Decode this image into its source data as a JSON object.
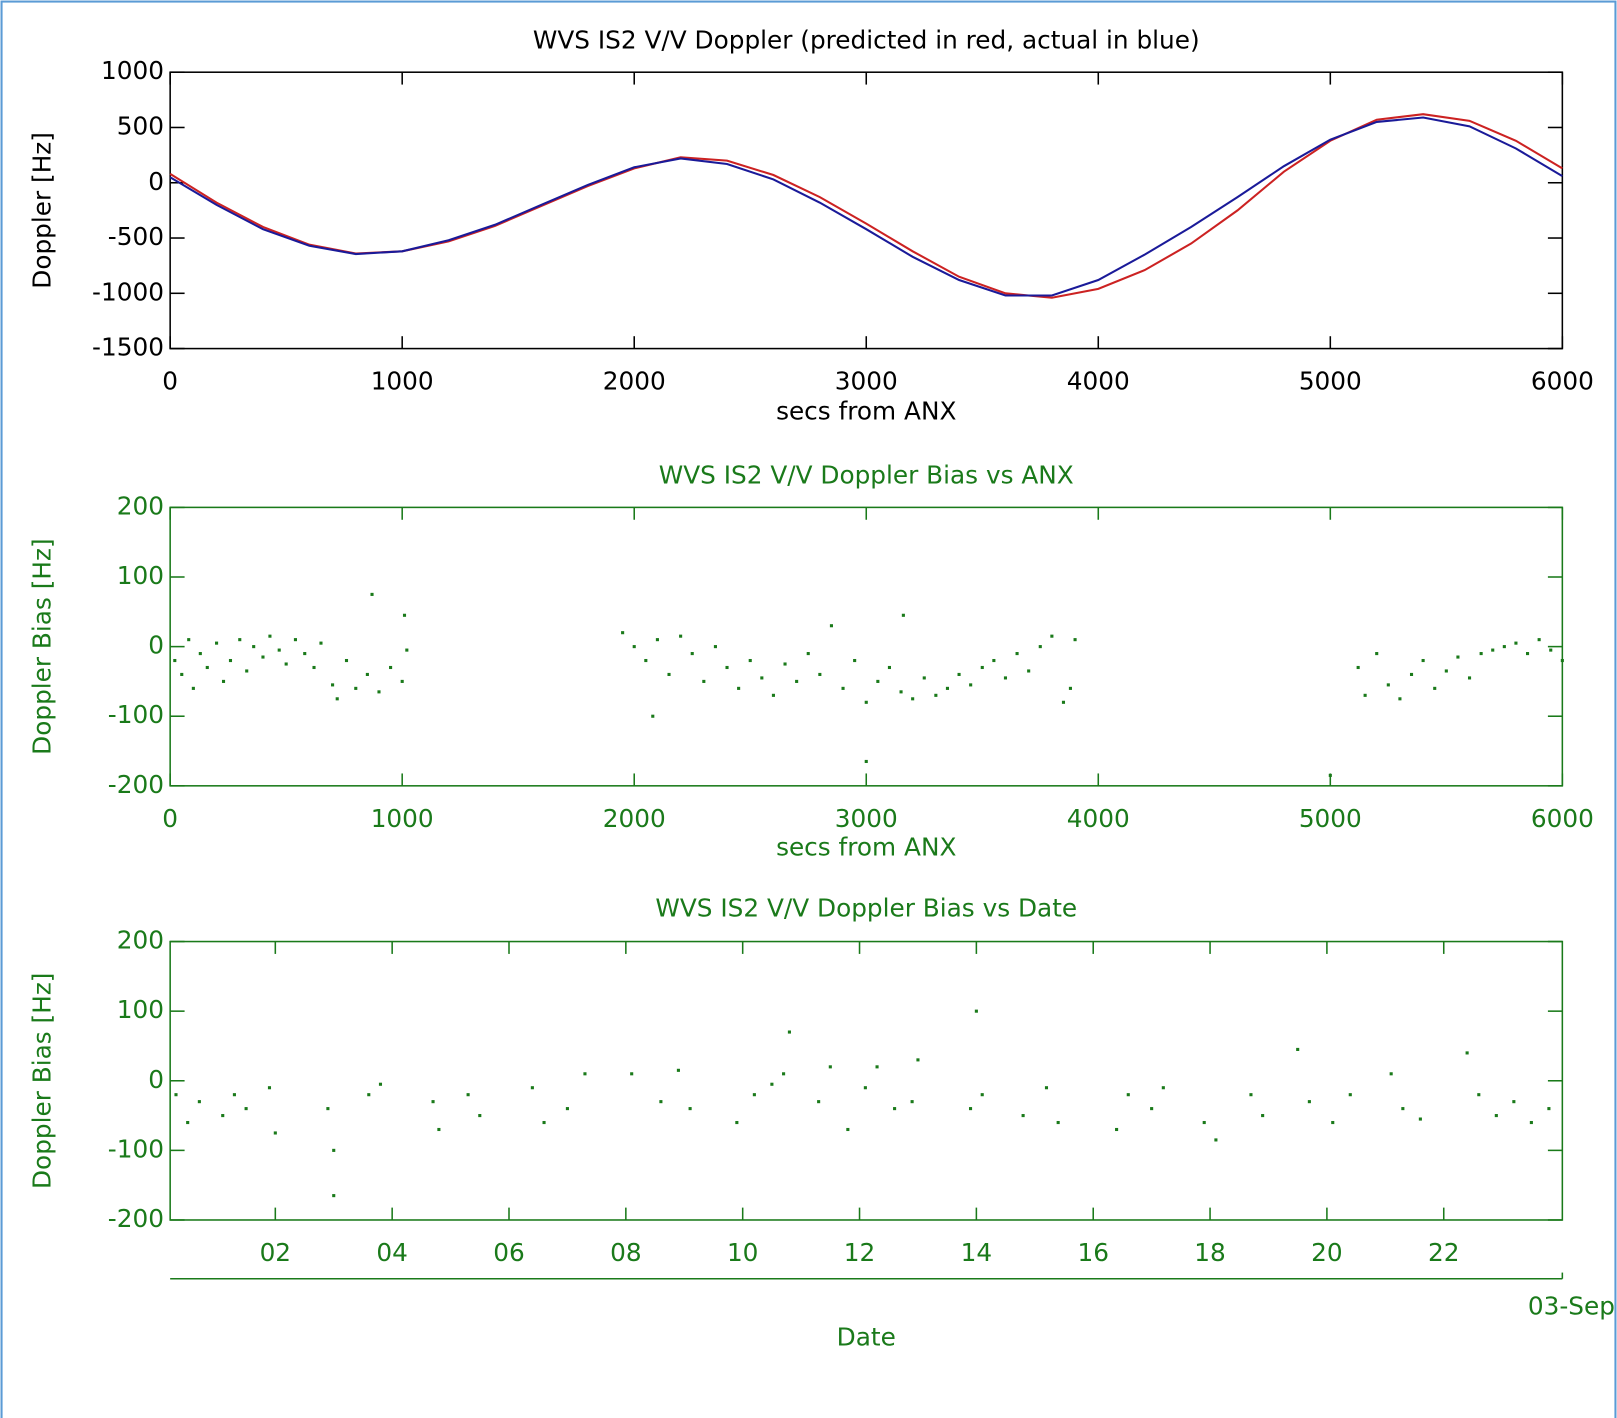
{
  "chart_data": [
    {
      "type": "line",
      "title": "WVS IS2 V/V Doppler (predicted in red, actual in blue)",
      "xlabel": "secs from ANX",
      "ylabel": "Doppler [Hz]",
      "text_color": "#000000",
      "x": [
        0,
        200,
        400,
        600,
        800,
        1000,
        1200,
        1400,
        1600,
        1800,
        2000,
        2200,
        2400,
        2600,
        2800,
        3000,
        3200,
        3400,
        3600,
        3800,
        4000,
        4200,
        4400,
        4600,
        4800,
        5000,
        5200,
        5400,
        5600,
        5800,
        6000
      ],
      "series": [
        {
          "color": "#cc2222",
          "values": [
            80,
            -180,
            -400,
            -560,
            -640,
            -620,
            -530,
            -390,
            -210,
            -30,
            130,
            230,
            200,
            70,
            -130,
            -370,
            -620,
            -850,
            -1000,
            -1040,
            -960,
            -790,
            -550,
            -250,
            100,
            380,
            570,
            620,
            560,
            380,
            130
          ]
        },
        {
          "color": "#1a1a99",
          "values": [
            50,
            -200,
            -420,
            -570,
            -645,
            -620,
            -520,
            -380,
            -200,
            -20,
            140,
            220,
            170,
            30,
            -180,
            -420,
            -670,
            -880,
            -1020,
            -1020,
            -880,
            -650,
            -400,
            -130,
            150,
            390,
            550,
            590,
            510,
            310,
            60
          ]
        }
      ],
      "xlim": [
        0,
        6000
      ],
      "ylim": [
        -1500,
        1000
      ],
      "xticks": [
        0,
        1000,
        2000,
        3000,
        4000,
        5000,
        6000
      ],
      "yticks": [
        -1500,
        -1000,
        -500,
        0,
        500,
        1000
      ]
    },
    {
      "type": "scatter",
      "title": "WVS IS2 V/V Doppler Bias vs ANX",
      "xlabel": "secs from ANX",
      "ylabel": "Doppler Bias [Hz]",
      "text_color": "#1a7a1a",
      "color": "#1a7a1a",
      "x": [
        20,
        50,
        80,
        100,
        130,
        160,
        200,
        230,
        260,
        300,
        330,
        360,
        400,
        430,
        470,
        500,
        540,
        580,
        620,
        650,
        700,
        720,
        760,
        800,
        850,
        870,
        900,
        950,
        1000,
        1020,
        1010,
        1950,
        2000,
        2050,
        2080,
        2100,
        2150,
        2200,
        2250,
        2300,
        2350,
        2400,
        2450,
        2500,
        2550,
        2600,
        2650,
        2700,
        2750,
        2800,
        2850,
        2900,
        2950,
        3000,
        3050,
        3100,
        3150,
        3200,
        3250,
        3300,
        3350,
        3400,
        3450,
        3500,
        3550,
        3600,
        3650,
        3700,
        3750,
        3800,
        3850,
        3880,
        3900,
        3160,
        3000,
        5120,
        5150,
        5200,
        5250,
        5300,
        5350,
        5400,
        5450,
        5500,
        5550,
        5600,
        5650,
        5700,
        5750,
        5800,
        5850,
        5900,
        5950,
        6000,
        5000
      ],
      "values": [
        -20,
        -40,
        10,
        -60,
        -10,
        -30,
        5,
        -50,
        -20,
        10,
        -35,
        0,
        -15,
        15,
        -5,
        -25,
        10,
        -10,
        -30,
        5,
        -55,
        -75,
        -20,
        -60,
        -40,
        75,
        -65,
        -30,
        -50,
        -5,
        45,
        20,
        0,
        -20,
        -100,
        10,
        -40,
        15,
        -10,
        -50,
        0,
        -30,
        -60,
        -20,
        -45,
        -70,
        -25,
        -50,
        -10,
        -40,
        30,
        -60,
        -20,
        -80,
        -50,
        -30,
        -65,
        -75,
        -45,
        -70,
        -60,
        -40,
        -55,
        -30,
        -20,
        -45,
        -10,
        -35,
        0,
        15,
        -80,
        -60,
        10,
        45,
        -165,
        -30,
        -70,
        -10,
        -55,
        -75,
        -40,
        -20,
        -60,
        -35,
        -15,
        -45,
        -10,
        -5,
        0,
        5,
        -10,
        10,
        -5,
        -20,
        -185
      ],
      "xlim": [
        0,
        6000
      ],
      "ylim": [
        -200,
        200
      ],
      "xticks": [
        0,
        1000,
        2000,
        3000,
        4000,
        5000,
        6000
      ],
      "yticks": [
        -200,
        -100,
        0,
        100,
        200
      ]
    },
    {
      "type": "scatter",
      "title": "WVS IS2 V/V Doppler Bias vs Date",
      "xlabel": "Date",
      "ylabel": "Doppler Bias [Hz]",
      "annotation": "03-Sep",
      "text_color": "#1a7a1a",
      "color": "#1a7a1a",
      "x": [
        0.3,
        0.5,
        0.7,
        1.1,
        1.3,
        1.5,
        1.9,
        2.0,
        2.9,
        3.0,
        3.0,
        3.6,
        3.8,
        4.7,
        4.8,
        5.3,
        5.5,
        6.4,
        6.6,
        7.0,
        7.3,
        8.1,
        8.6,
        8.9,
        9.1,
        9.9,
        10.2,
        10.5,
        10.7,
        10.8,
        11.3,
        11.5,
        11.8,
        12.1,
        12.3,
        12.6,
        12.9,
        13.0,
        13.9,
        14.0,
        14.1,
        14.8,
        15.2,
        15.4,
        16.4,
        16.6,
        17.0,
        17.2,
        17.9,
        18.1,
        18.7,
        18.9,
        19.5,
        19.7,
        20.1,
        20.4,
        21.1,
        21.3,
        21.6,
        22.4,
        22.6,
        22.9,
        23.2,
        23.5,
        23.8
      ],
      "values": [
        -20,
        -60,
        -30,
        -50,
        -20,
        -40,
        -10,
        -75,
        -40,
        -100,
        -165,
        -20,
        -5,
        -30,
        -70,
        -20,
        -50,
        -10,
        -60,
        -40,
        10,
        10,
        -30,
        15,
        -40,
        -60,
        -20,
        -5,
        10,
        70,
        -30,
        20,
        -70,
        -10,
        20,
        -40,
        -30,
        30,
        -40,
        100,
        -20,
        -50,
        -10,
        -60,
        -70,
        -20,
        -40,
        -10,
        -60,
        -85,
        -20,
        -50,
        45,
        -30,
        -60,
        -20,
        10,
        -40,
        -55,
        40,
        -20,
        -50,
        -30,
        -60,
        -40
      ],
      "xlim": [
        0.2,
        24.03
      ],
      "ylim": [
        -200,
        200
      ],
      "xticks": [
        {
          "value": 2,
          "label": "02"
        },
        {
          "value": 4,
          "label": "04"
        },
        {
          "value": 6,
          "label": "06"
        },
        {
          "value": 8,
          "label": "08"
        },
        {
          "value": 10,
          "label": "10"
        },
        {
          "value": 12,
          "label": "12"
        },
        {
          "value": 14,
          "label": "14"
        },
        {
          "value": 16,
          "label": "16"
        },
        {
          "value": 18,
          "label": "18"
        },
        {
          "value": 20,
          "label": "20"
        },
        {
          "value": 22,
          "label": "22"
        }
      ],
      "yticks": [
        -200,
        -100,
        0,
        100,
        200
      ]
    }
  ]
}
